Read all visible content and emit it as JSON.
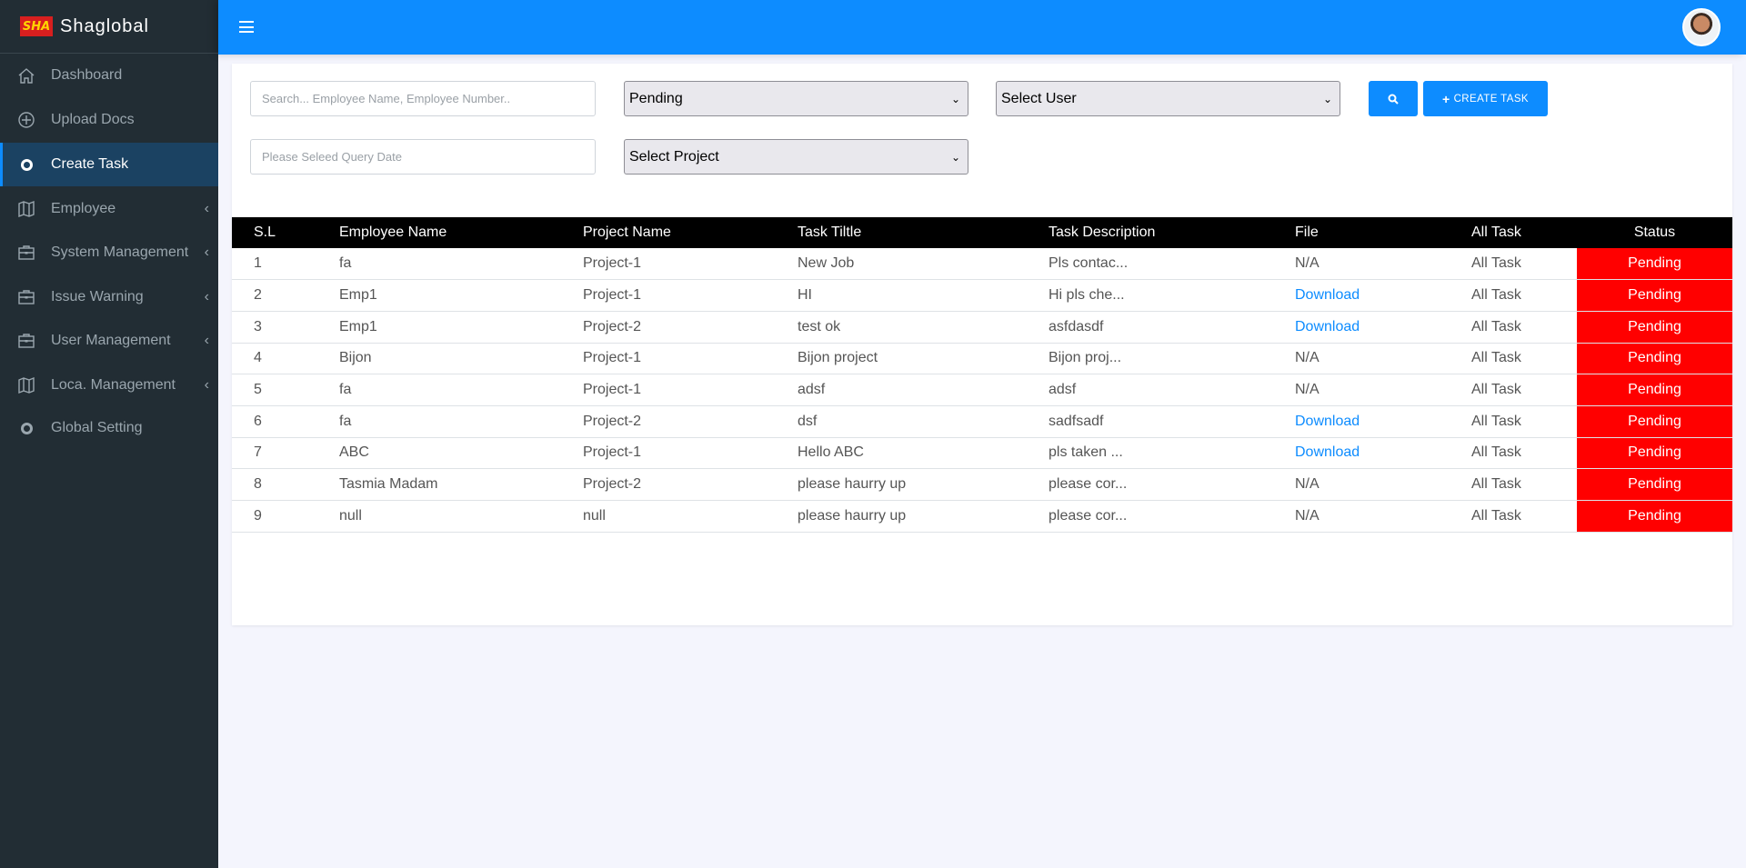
{
  "brand": {
    "name": "Shaglobal",
    "logo_text": "SHA"
  },
  "sidebar": {
    "items": [
      {
        "label": "Dashboard",
        "icon": "home-icon"
      },
      {
        "label": "Upload Docs",
        "icon": "plus-circle-icon"
      },
      {
        "label": "Create Task",
        "icon": "circle-icon",
        "active": true
      },
      {
        "label": "Employee",
        "icon": "map-icon",
        "submenu": true
      },
      {
        "label": "System Management",
        "icon": "briefcase-icon",
        "submenu": true
      },
      {
        "label": "Issue Warning",
        "icon": "briefcase-icon",
        "submenu": true
      },
      {
        "label": "User Management",
        "icon": "briefcase-icon",
        "submenu": true
      },
      {
        "label": "Loca. Management",
        "icon": "map-icon",
        "submenu": true
      },
      {
        "label": "Global Setting",
        "icon": "circle-icon"
      }
    ]
  },
  "filters": {
    "search_placeholder": "Search... Employee Name, Employee Number..",
    "date_placeholder": "Please Seleed Query Date",
    "status_select": "Pending",
    "user_select": "Select User",
    "project_select": "Select Project",
    "create_label": "CREATE TASK"
  },
  "colors": {
    "accent": "#0d8cff",
    "sidebar": "#222d34",
    "status_pending": "#ff0000"
  },
  "table": {
    "headers": [
      "S.L",
      "Employee Name",
      "Project Name",
      "Task Tiltle",
      "Task Description",
      "File",
      "All Task",
      "Status"
    ],
    "rows": [
      [
        "1",
        "fa",
        "Project-1",
        "New Job",
        "Pls contac...",
        "N/A",
        "All Task",
        "Pending"
      ],
      [
        "2",
        "Emp1",
        "Project-1",
        "HI",
        "Hi pls che...",
        "Download",
        "All Task",
        "Pending"
      ],
      [
        "3",
        "Emp1",
        "Project-2",
        "test ok",
        "asfdasdf",
        "Download",
        "All Task",
        "Pending"
      ],
      [
        "4",
        "Bijon",
        "Project-1",
        "Bijon project",
        "Bijon proj...",
        "N/A",
        "All Task",
        "Pending"
      ],
      [
        "5",
        "fa",
        "Project-1",
        "adsf",
        "adsf",
        "N/A",
        "All Task",
        "Pending"
      ],
      [
        "6",
        "fa",
        "Project-2",
        "dsf",
        "sadfsadf",
        "Download",
        "All Task",
        "Pending"
      ],
      [
        "7",
        "ABC",
        "Project-1",
        "Hello ABC",
        "pls taken ...",
        "Download",
        "All Task",
        "Pending"
      ],
      [
        "8",
        "Tasmia Madam",
        "Project-2",
        "please haurry up",
        "please cor...",
        "N/A",
        "All Task",
        "Pending"
      ],
      [
        "9",
        "null",
        "null",
        "please haurry up",
        "please cor...",
        "N/A",
        "All Task",
        "Pending"
      ]
    ]
  }
}
